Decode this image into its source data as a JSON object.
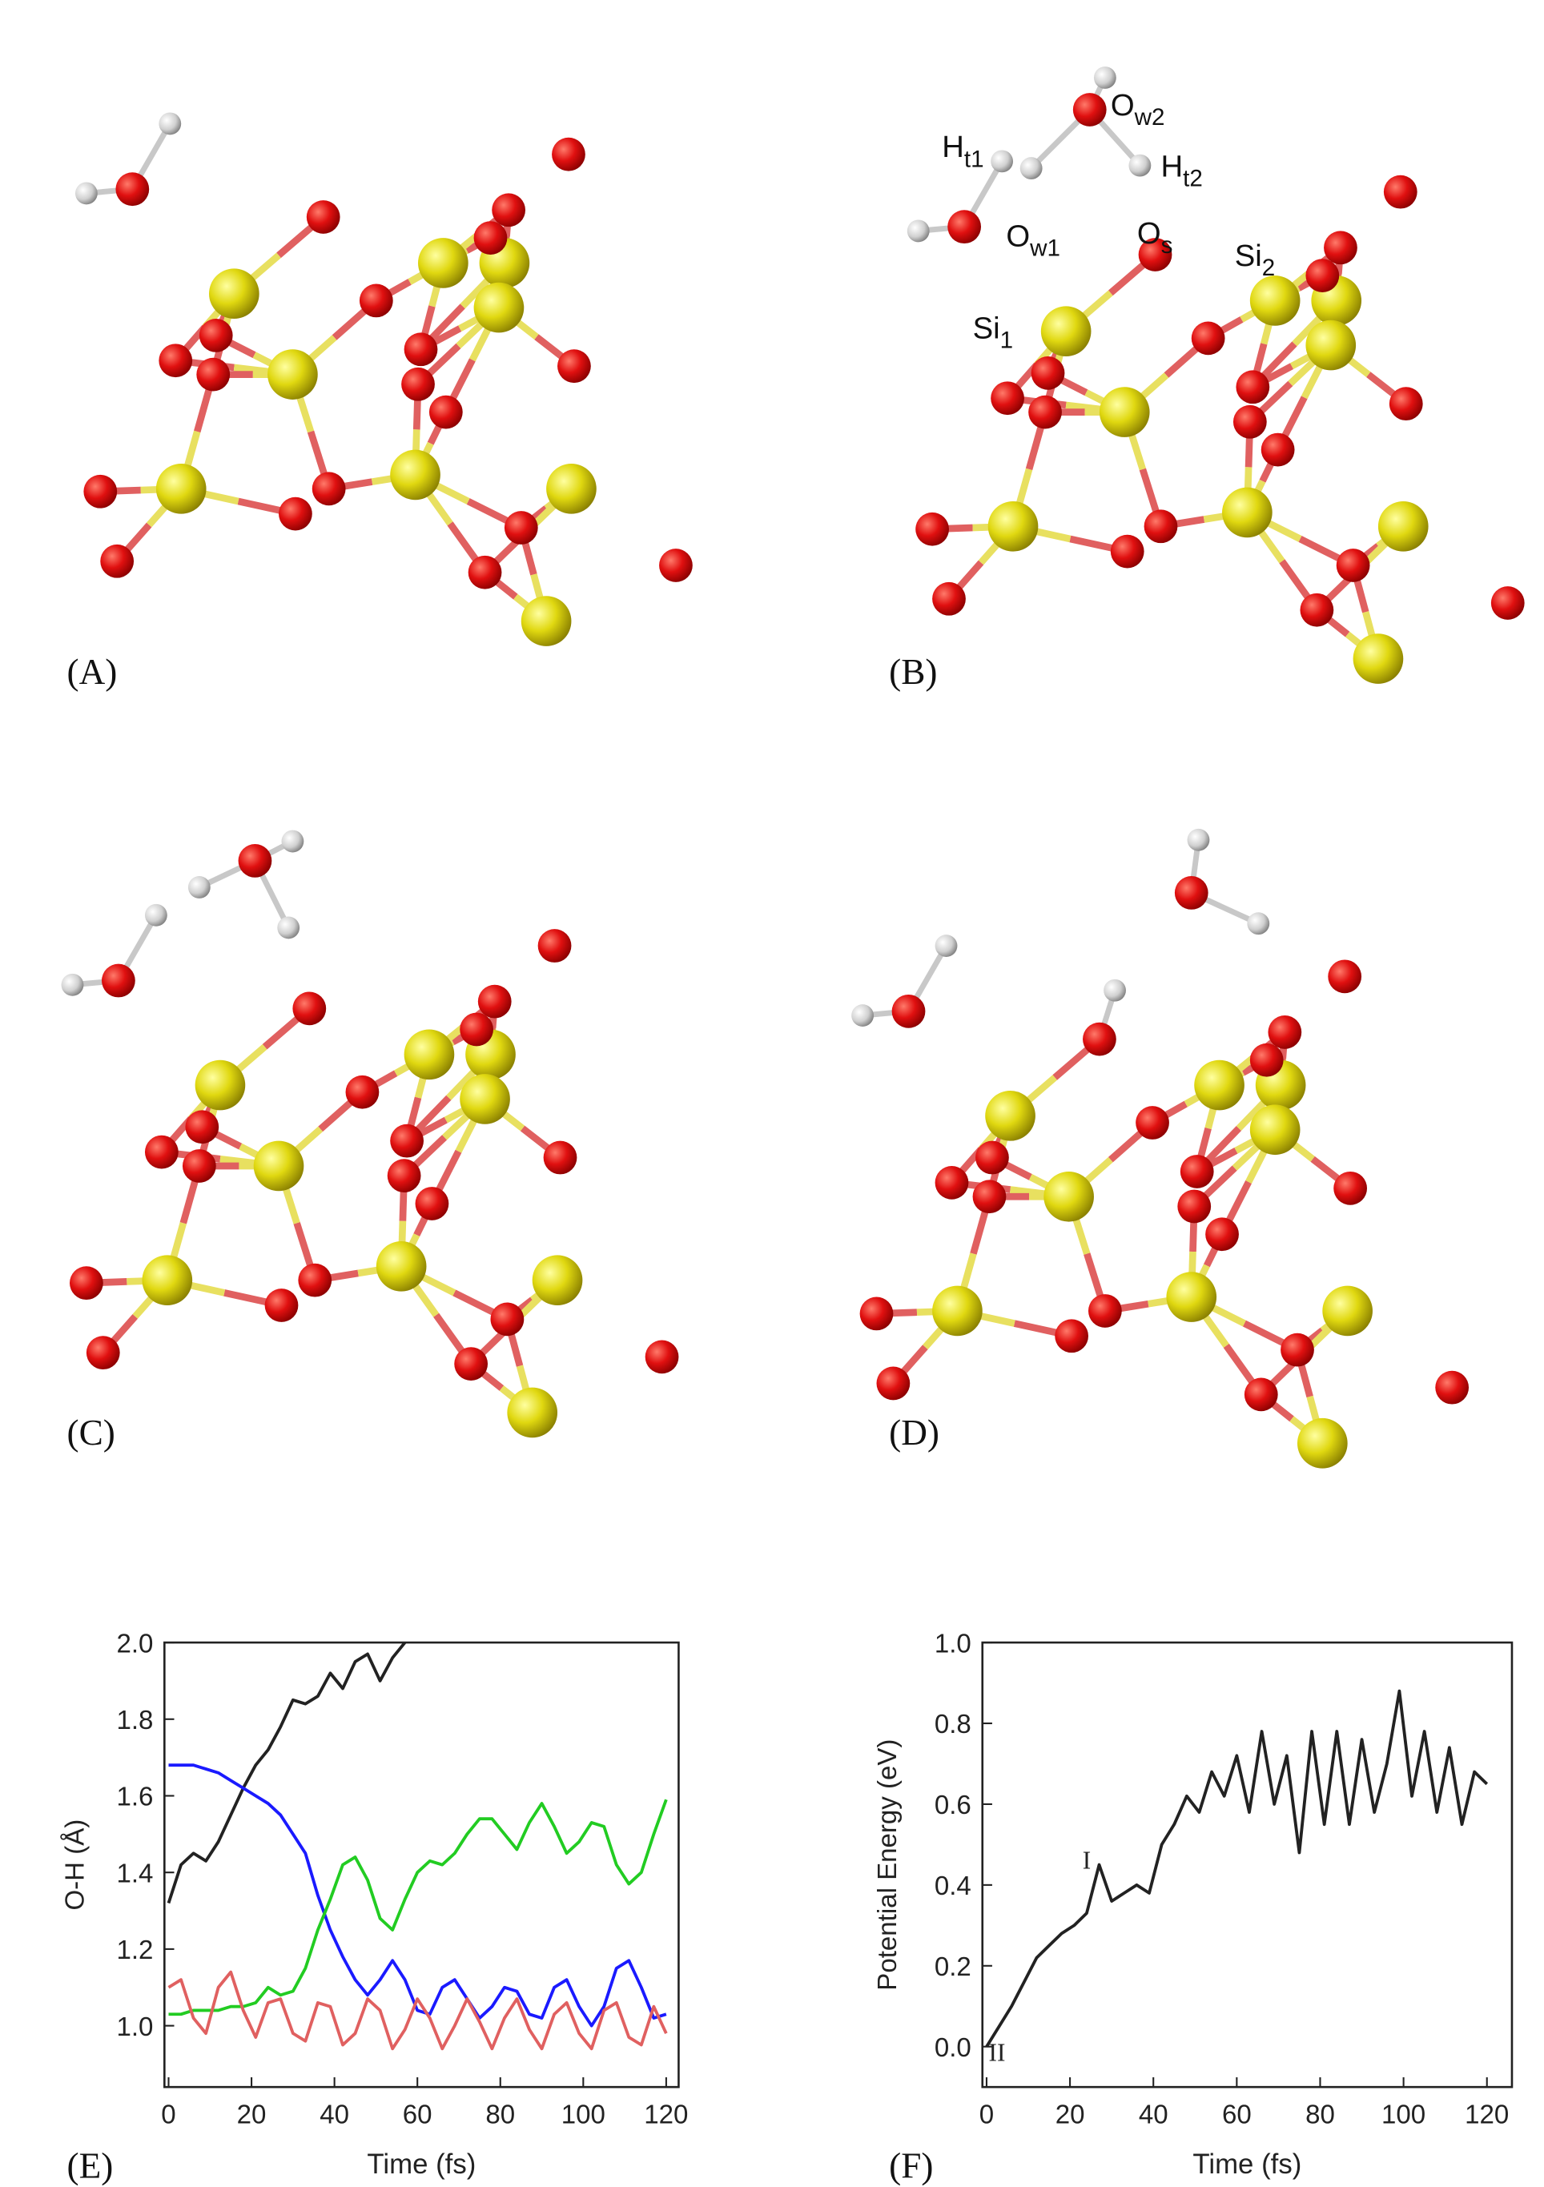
{
  "panel_labels": [
    "(A)",
    "(B)",
    "(C)",
    "(D)",
    "(E)",
    "(F)"
  ],
  "atom_labels": [
    {
      "main": "H",
      "sub": "t1"
    },
    {
      "main": "O",
      "sub": "w2"
    },
    {
      "main": "H",
      "sub": "t2"
    },
    {
      "main": "O",
      "sub": "w1"
    },
    {
      "main": "O",
      "sub": "s"
    },
    {
      "main": "Si",
      "sub": "2"
    },
    {
      "main": "Si",
      "sub": "1"
    }
  ],
  "chart_data": [
    {
      "type": "line",
      "xlabel": "Time (fs)",
      "ylabel": "O-H (Å)",
      "x": [
        0,
        3,
        6,
        9,
        12,
        15,
        18,
        21,
        24,
        27,
        30,
        33,
        36,
        39,
        42,
        45,
        48,
        51,
        54,
        57,
        60,
        63,
        66,
        69,
        72,
        75,
        78,
        81,
        84,
        87,
        90,
        93,
        96,
        99,
        102,
        105,
        108,
        111,
        114,
        117,
        120
      ],
      "series": [
        {
          "color": "#222222",
          "values": [
            1.32,
            1.42,
            1.45,
            1.43,
            1.48,
            1.55,
            1.62,
            1.68,
            1.72,
            1.78,
            1.85,
            1.84,
            1.86,
            1.92,
            1.88,
            1.95,
            1.97,
            1.9,
            1.96,
            2.0,
            null,
            null,
            null,
            null,
            null,
            null,
            null,
            null,
            null,
            null,
            null,
            null,
            null,
            null,
            null,
            null,
            null,
            null,
            null,
            null,
            null
          ]
        },
        {
          "color": "#1a1aff",
          "values": [
            1.68,
            1.68,
            1.68,
            1.67,
            1.66,
            1.64,
            1.62,
            1.6,
            1.58,
            1.55,
            1.5,
            1.45,
            1.34,
            1.25,
            1.18,
            1.12,
            1.08,
            1.12,
            1.17,
            1.12,
            1.04,
            1.03,
            1.1,
            1.12,
            1.07,
            1.02,
            1.05,
            1.1,
            1.09,
            1.03,
            1.02,
            1.1,
            1.12,
            1.05,
            1.0,
            1.05,
            1.15,
            1.17,
            1.1,
            1.02,
            1.03
          ]
        },
        {
          "color": "#22cc22",
          "values": [
            1.03,
            1.03,
            1.04,
            1.04,
            1.04,
            1.05,
            1.05,
            1.06,
            1.1,
            1.08,
            1.09,
            1.15,
            1.25,
            1.33,
            1.42,
            1.44,
            1.38,
            1.28,
            1.25,
            1.33,
            1.4,
            1.43,
            1.42,
            1.45,
            1.5,
            1.54,
            1.54,
            1.5,
            1.46,
            1.53,
            1.58,
            1.52,
            1.45,
            1.48,
            1.53,
            1.52,
            1.42,
            1.37,
            1.4,
            1.5,
            1.59
          ]
        },
        {
          "color": "#e06060",
          "values": [
            1.1,
            1.12,
            1.02,
            0.98,
            1.1,
            1.14,
            1.04,
            0.97,
            1.06,
            1.07,
            0.98,
            0.96,
            1.06,
            1.05,
            0.95,
            0.98,
            1.07,
            1.04,
            0.94,
            0.99,
            1.07,
            1.02,
            0.94,
            1.0,
            1.07,
            1.01,
            0.94,
            1.02,
            1.07,
            0.99,
            0.94,
            1.03,
            1.06,
            0.98,
            0.94,
            1.04,
            1.06,
            0.97,
            0.95,
            1.05,
            0.98
          ]
        }
      ],
      "xlim": [
        -1,
        123
      ],
      "ylim": [
        0.84,
        2.0
      ],
      "xticks": [
        0,
        20,
        40,
        60,
        80,
        100,
        120
      ],
      "yticks": [
        {
          "value": 1,
          "label": "1.0"
        },
        1.2,
        1.4,
        1.6,
        1.8,
        {
          "value": 2,
          "label": "2.0"
        }
      ]
    },
    {
      "type": "line",
      "xlabel": "Time (fs)",
      "ylabel": "Potential Energy (eV)",
      "x": [
        0,
        3,
        6,
        9,
        12,
        15,
        18,
        21,
        24,
        27,
        30,
        33,
        36,
        39,
        42,
        45,
        48,
        51,
        54,
        57,
        60,
        63,
        66,
        69,
        72,
        75,
        78,
        81,
        84,
        87,
        90,
        93,
        96,
        99,
        102,
        105,
        108,
        111,
        114,
        117,
        120
      ],
      "series": [
        {
          "color": "#222222",
          "values": [
            0.0,
            0.05,
            0.1,
            0.16,
            0.22,
            0.25,
            0.28,
            0.3,
            0.33,
            0.45,
            0.36,
            0.38,
            0.4,
            0.38,
            0.5,
            0.55,
            0.62,
            0.58,
            0.68,
            0.62,
            0.72,
            0.58,
            0.78,
            0.6,
            0.72,
            0.48,
            0.78,
            0.55,
            0.78,
            0.55,
            0.76,
            0.58,
            0.7,
            0.88,
            0.62,
            0.78,
            0.58,
            0.74,
            0.55,
            0.68,
            0.65
          ]
        }
      ],
      "annotations": [
        "I",
        "II"
      ],
      "xlim": [
        -1,
        126
      ],
      "ylim": [
        -0.1,
        1.0
      ],
      "xticks": [
        0,
        20,
        40,
        60,
        80,
        100,
        120
      ],
      "yticks": [
        {
          "value": 0,
          "label": "0.0"
        },
        0.2,
        0.4,
        0.6,
        0.8,
        {
          "value": 1,
          "label": "1.0"
        }
      ]
    }
  ]
}
